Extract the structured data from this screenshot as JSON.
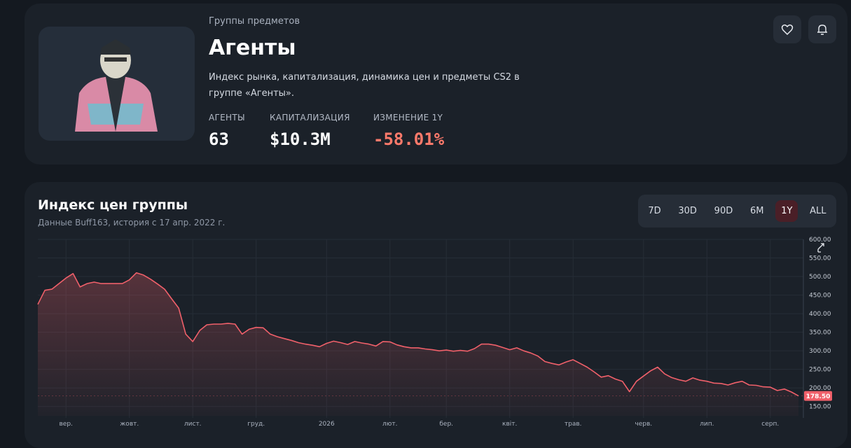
{
  "header": {
    "breadcrumb": "Группы предметов",
    "title": "Агенты",
    "description": "Индекс рынка, капитализация, динамика цен и предметы CS2 в группе «Агенты».",
    "stats": [
      {
        "label": "АГЕНТЫ",
        "value": "63"
      },
      {
        "label": "КАПИТАЛИЗАЦИЯ",
        "value": "$10.3M"
      },
      {
        "label": "ИЗМЕНЕНИЕ 1Y",
        "value": "-58.01%"
      }
    ]
  },
  "range_buttons": [
    "7D",
    "30D",
    "90D",
    "6M",
    "1Y",
    "ALL"
  ],
  "active_range": 4,
  "chart_data": {
    "type": "area",
    "title": "Индекс цен группы",
    "subtitle": "Данные Buff163, история с 17 апр. 2022 г.",
    "color": "#f0606a",
    "grid": true,
    "categories": [
      null,
      null,
      null,
      null,
      "вер.",
      null,
      null,
      null,
      null,
      null,
      null,
      null,
      null,
      "жовт.",
      null,
      null,
      null,
      null,
      null,
      null,
      null,
      null,
      "лист.",
      null,
      null,
      null,
      null,
      null,
      null,
      null,
      null,
      "груд.",
      null,
      null,
      null,
      null,
      null,
      null,
      null,
      null,
      null,
      "2026",
      null,
      null,
      null,
      null,
      null,
      null,
      null,
      null,
      "лют.",
      null,
      null,
      null,
      null,
      null,
      null,
      null,
      "бер.",
      null,
      null,
      null,
      null,
      null,
      null,
      null,
      null,
      "квіт.",
      null,
      null,
      null,
      null,
      null,
      null,
      null,
      null,
      "трав.",
      null,
      null,
      null,
      null,
      null,
      null,
      null,
      null,
      null,
      "черв.",
      null,
      null,
      null,
      null,
      null,
      null,
      null,
      null,
      "лип.",
      null,
      null,
      null,
      null,
      null,
      null,
      null,
      null,
      "серп.",
      null,
      null,
      null,
      null
    ],
    "values": [
      425,
      463,
      466,
      481,
      496,
      508,
      472,
      481,
      485,
      481,
      481,
      481,
      481,
      491,
      510,
      504,
      493,
      480,
      466,
      440,
      415,
      345,
      325,
      355,
      370,
      372,
      372,
      374,
      372,
      345,
      358,
      363,
      362,
      345,
      338,
      333,
      328,
      322,
      318,
      315,
      311,
      320,
      326,
      322,
      317,
      325,
      321,
      318,
      313,
      325,
      324,
      316,
      311,
      308,
      308,
      305,
      303,
      300,
      302,
      299,
      301,
      299,
      306,
      318,
      318,
      315,
      309,
      303,
      308,
      300,
      294,
      286,
      271,
      266,
      262,
      270,
      276,
      266,
      256,
      243,
      229,
      233,
      224,
      218,
      190,
      218,
      232,
      246,
      256,
      238,
      228,
      222,
      218,
      227,
      221,
      218,
      213,
      212,
      208,
      214,
      218,
      208,
      207,
      203,
      202,
      193,
      197,
      189,
      178.5
    ],
    "ylim": [
      125,
      600
    ],
    "yticks": [
      {
        "value": 150,
        "label": "150.00"
      },
      {
        "value": 200,
        "label": "200.00"
      },
      {
        "value": 250,
        "label": "250.00"
      },
      {
        "value": 300,
        "label": "300.00"
      },
      {
        "value": 350,
        "label": "350.00"
      },
      {
        "value": 400,
        "label": "400.00"
      },
      {
        "value": 450,
        "label": "450.00"
      },
      {
        "value": 500,
        "label": "500.00"
      },
      {
        "value": 550,
        "label": "550.00"
      },
      {
        "value": 600,
        "label": "600.00"
      }
    ],
    "current_marker": {
      "value": 178.5,
      "label": "178.50"
    }
  }
}
